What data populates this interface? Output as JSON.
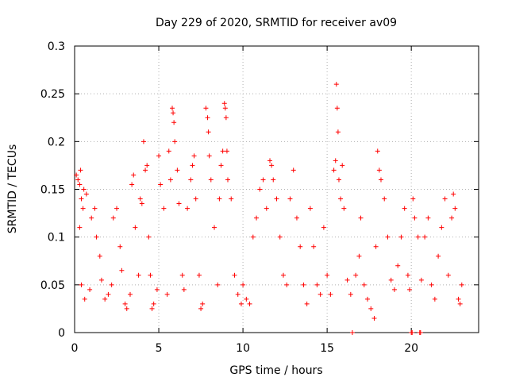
{
  "chart_data": {
    "type": "scatter",
    "title": "Day 229 of 2020, SRMTID for receiver av09",
    "xlabel": "GPS time / hours",
    "ylabel": "SRMTID / TECUs",
    "xlim": [
      0,
      24
    ],
    "ylim": [
      0,
      0.3
    ],
    "x_ticks": [
      0,
      5,
      10,
      15,
      20
    ],
    "y_ticks": [
      0,
      0.05,
      0.1,
      0.15,
      0.2,
      0.25,
      0.3
    ],
    "x_tick_labels": [
      "0",
      "5",
      "10",
      "15",
      "20"
    ],
    "y_tick_labels": [
      "0",
      "0.05",
      "0.1",
      "0.15",
      "0.2",
      "0.25",
      "0.3"
    ],
    "grid": true,
    "marker": "plus",
    "color": "#ff0000",
    "series": [
      {
        "name": "SRMTID",
        "points": [
          [
            0.1,
            0.165
          ],
          [
            0.2,
            0.16
          ],
          [
            0.3,
            0.155
          ],
          [
            0.35,
            0.17
          ],
          [
            0.4,
            0.14
          ],
          [
            0.5,
            0.13
          ],
          [
            0.55,
            0.15
          ],
          [
            0.7,
            0.145
          ],
          [
            0.3,
            0.11
          ],
          [
            0.4,
            0.05
          ],
          [
            0.6,
            0.035
          ],
          [
            0.9,
            0.045
          ],
          [
            1.0,
            0.12
          ],
          [
            1.2,
            0.13
          ],
          [
            1.3,
            0.1
          ],
          [
            1.5,
            0.08
          ],
          [
            1.6,
            0.055
          ],
          [
            1.8,
            0.035
          ],
          [
            2.0,
            0.04
          ],
          [
            2.2,
            0.05
          ],
          [
            2.3,
            0.12
          ],
          [
            2.5,
            0.13
          ],
          [
            2.7,
            0.09
          ],
          [
            2.8,
            0.065
          ],
          [
            3.0,
            0.03
          ],
          [
            3.1,
            0.025
          ],
          [
            3.3,
            0.04
          ],
          [
            3.4,
            0.155
          ],
          [
            3.5,
            0.165
          ],
          [
            3.6,
            0.11
          ],
          [
            3.8,
            0.06
          ],
          [
            3.9,
            0.14
          ],
          [
            4.0,
            0.135
          ],
          [
            4.1,
            0.2
          ],
          [
            4.2,
            0.17
          ],
          [
            4.3,
            0.175
          ],
          [
            4.4,
            0.1
          ],
          [
            4.5,
            0.06
          ],
          [
            4.6,
            0.025
          ],
          [
            4.7,
            0.03
          ],
          [
            4.9,
            0.045
          ],
          [
            5.0,
            0.185
          ],
          [
            5.1,
            0.155
          ],
          [
            5.3,
            0.13
          ],
          [
            5.5,
            0.04
          ],
          [
            5.6,
            0.19
          ],
          [
            5.7,
            0.16
          ],
          [
            5.8,
            0.235
          ],
          [
            5.85,
            0.23
          ],
          [
            5.9,
            0.22
          ],
          [
            5.95,
            0.2
          ],
          [
            6.1,
            0.17
          ],
          [
            6.2,
            0.135
          ],
          [
            6.4,
            0.06
          ],
          [
            6.5,
            0.045
          ],
          [
            6.7,
            0.13
          ],
          [
            6.9,
            0.16
          ],
          [
            7.0,
            0.175
          ],
          [
            7.1,
            0.185
          ],
          [
            7.2,
            0.14
          ],
          [
            7.4,
            0.06
          ],
          [
            7.5,
            0.025
          ],
          [
            7.6,
            0.03
          ],
          [
            7.8,
            0.235
          ],
          [
            7.9,
            0.225
          ],
          [
            7.95,
            0.21
          ],
          [
            8.0,
            0.185
          ],
          [
            8.1,
            0.16
          ],
          [
            8.3,
            0.11
          ],
          [
            8.5,
            0.05
          ],
          [
            8.6,
            0.14
          ],
          [
            8.7,
            0.175
          ],
          [
            8.8,
            0.19
          ],
          [
            8.9,
            0.24
          ],
          [
            8.95,
            0.235
          ],
          [
            9.0,
            0.225
          ],
          [
            9.05,
            0.19
          ],
          [
            9.1,
            0.16
          ],
          [
            9.3,
            0.14
          ],
          [
            9.5,
            0.06
          ],
          [
            9.7,
            0.04
          ],
          [
            9.9,
            0.03
          ],
          [
            10.0,
            0.05
          ],
          [
            10.2,
            0.035
          ],
          [
            10.4,
            0.03
          ],
          [
            10.6,
            0.1
          ],
          [
            10.8,
            0.12
          ],
          [
            11.0,
            0.15
          ],
          [
            11.2,
            0.16
          ],
          [
            11.4,
            0.13
          ],
          [
            11.6,
            0.18
          ],
          [
            11.7,
            0.175
          ],
          [
            11.8,
            0.16
          ],
          [
            12.0,
            0.14
          ],
          [
            12.2,
            0.1
          ],
          [
            12.4,
            0.06
          ],
          [
            12.6,
            0.05
          ],
          [
            12.8,
            0.14
          ],
          [
            13.0,
            0.17
          ],
          [
            13.2,
            0.12
          ],
          [
            13.4,
            0.09
          ],
          [
            13.6,
            0.05
          ],
          [
            13.8,
            0.03
          ],
          [
            14.0,
            0.13
          ],
          [
            14.2,
            0.09
          ],
          [
            14.4,
            0.05
          ],
          [
            14.6,
            0.04
          ],
          [
            14.8,
            0.11
          ],
          [
            15.0,
            0.06
          ],
          [
            15.2,
            0.04
          ],
          [
            15.4,
            0.17
          ],
          [
            15.5,
            0.18
          ],
          [
            15.55,
            0.26
          ],
          [
            15.6,
            0.235
          ],
          [
            15.65,
            0.21
          ],
          [
            15.7,
            0.16
          ],
          [
            15.8,
            0.14
          ],
          [
            15.9,
            0.175
          ],
          [
            16.0,
            0.13
          ],
          [
            16.2,
            0.055
          ],
          [
            16.4,
            0.04
          ],
          [
            16.5,
            0.0
          ],
          [
            16.7,
            0.06
          ],
          [
            16.9,
            0.08
          ],
          [
            17.0,
            0.12
          ],
          [
            17.2,
            0.05
          ],
          [
            17.4,
            0.035
          ],
          [
            17.6,
            0.025
          ],
          [
            17.8,
            0.015
          ],
          [
            17.9,
            0.09
          ],
          [
            18.0,
            0.19
          ],
          [
            18.1,
            0.17
          ],
          [
            18.2,
            0.16
          ],
          [
            18.4,
            0.14
          ],
          [
            18.6,
            0.1
          ],
          [
            18.8,
            0.055
          ],
          [
            19.0,
            0.045
          ],
          [
            19.2,
            0.07
          ],
          [
            19.4,
            0.1
          ],
          [
            19.6,
            0.13
          ],
          [
            19.8,
            0.06
          ],
          [
            19.9,
            0.045
          ],
          [
            20.0,
            0.0
          ],
          [
            20.05,
            0.0
          ],
          [
            20.1,
            0.14
          ],
          [
            20.2,
            0.12
          ],
          [
            20.4,
            0.1
          ],
          [
            20.5,
            0.0
          ],
          [
            20.55,
            0.0
          ],
          [
            20.6,
            0.055
          ],
          [
            20.8,
            0.1
          ],
          [
            21.0,
            0.12
          ],
          [
            21.2,
            0.05
          ],
          [
            21.4,
            0.035
          ],
          [
            21.6,
            0.08
          ],
          [
            21.8,
            0.11
          ],
          [
            22.0,
            0.14
          ],
          [
            22.2,
            0.06
          ],
          [
            22.4,
            0.12
          ],
          [
            22.5,
            0.145
          ],
          [
            22.6,
            0.13
          ],
          [
            22.8,
            0.035
          ],
          [
            22.9,
            0.03
          ],
          [
            23.0,
            0.05
          ]
        ]
      }
    ]
  }
}
